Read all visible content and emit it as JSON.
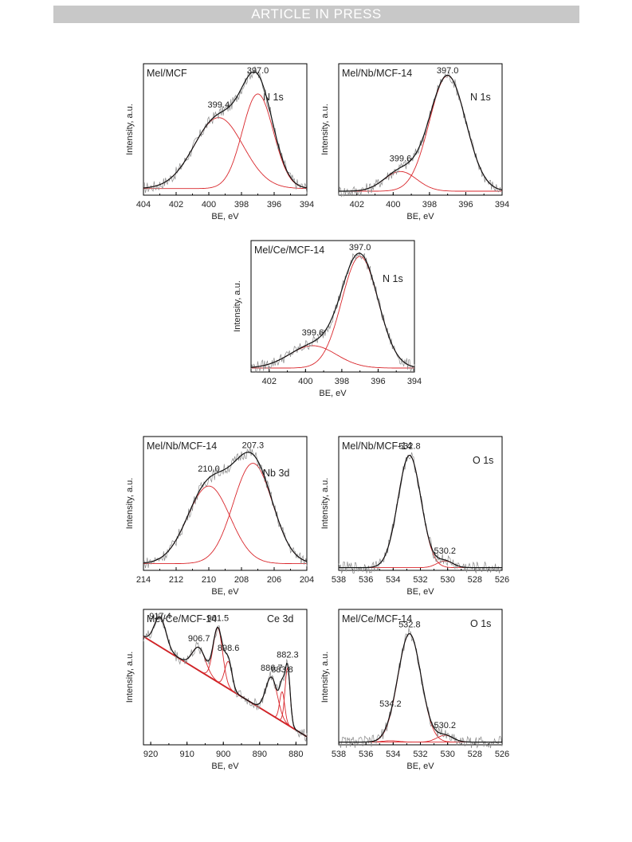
{
  "header": {
    "banner": "ARTICLE IN PRESS"
  },
  "chart_data": [
    {
      "type": "line",
      "title": "Mel/MCF",
      "region": "N 1s",
      "xlabel": "BE, eV",
      "ylabel": "Intensity, a.u.",
      "xlim": [
        404,
        394
      ],
      "x_ticks": [
        404,
        402,
        400,
        398,
        396,
        394
      ],
      "baseline": [
        0.05,
        0.05
      ],
      "peaks": [
        {
          "center": 399.4,
          "height": 0.54,
          "width": 1.5,
          "label": "399.4"
        },
        {
          "center": 397.0,
          "height": 0.72,
          "width": 0.95,
          "label": "397.0"
        }
      ]
    },
    {
      "type": "line",
      "title": "Mel/Nb/MCF-14",
      "region": "N 1s",
      "xlabel": "BE, eV",
      "ylabel": "Intensity, a.u.",
      "xlim": [
        403,
        394
      ],
      "x_ticks": [
        402,
        400,
        398,
        396,
        394
      ],
      "baseline": [
        0.03,
        0.03
      ],
      "peaks": [
        {
          "center": 399.6,
          "height": 0.15,
          "width": 0.9,
          "label": "399.6"
        },
        {
          "center": 397.0,
          "height": 0.88,
          "width": 1.0,
          "label": "397.0"
        }
      ]
    },
    {
      "type": "line",
      "title": "Mel/Ce/MCF-14",
      "region": "N 1s",
      "xlabel": "BE, eV",
      "ylabel": "Intensity, a.u.",
      "xlim": [
        403,
        394
      ],
      "x_ticks": [
        402,
        400,
        398,
        396,
        394
      ],
      "baseline": [
        0.03,
        0.03
      ],
      "peaks": [
        {
          "center": 399.6,
          "height": 0.17,
          "width": 1.3,
          "label": "399.6"
        },
        {
          "center": 397.0,
          "height": 0.85,
          "width": 1.0,
          "label": "397.0"
        }
      ]
    },
    {
      "type": "line",
      "title": "Mel/Nb/MCF-14",
      "region": "Nb 3d",
      "xlabel": "BE, eV",
      "ylabel": "Intensity, a.u.",
      "xlim": [
        214,
        204
      ],
      "x_ticks": [
        214,
        212,
        210,
        208,
        206,
        204
      ],
      "baseline": [
        0.05,
        0.05
      ],
      "peaks": [
        {
          "center": 210.0,
          "height": 0.58,
          "width": 1.3,
          "label": "210.0"
        },
        {
          "center": 207.3,
          "height": 0.75,
          "width": 1.2,
          "label": "207.3"
        }
      ]
    },
    {
      "type": "line",
      "title": "Mel/Nb/MCF-14",
      "region": "O 1s",
      "xlabel": "BE, eV",
      "ylabel": "Intensity, a.u.",
      "xlim": [
        538,
        526
      ],
      "x_ticks": [
        538,
        536,
        534,
        532,
        530,
        528,
        526
      ],
      "baseline": [
        0.02,
        0.02
      ],
      "peaks": [
        {
          "center": 532.8,
          "height": 0.84,
          "width": 0.85,
          "label": "532.8"
        },
        {
          "center": 530.2,
          "height": 0.05,
          "width": 0.6,
          "label": "530.2"
        }
      ]
    },
    {
      "type": "line",
      "title": "Mel/Ce/MCF-14",
      "region": "Ce 3d",
      "xlabel": "BE, eV",
      "ylabel": "Intensity, a.u.",
      "xlim": [
        922,
        877
      ],
      "x_ticks": [
        920,
        910,
        900,
        890,
        880
      ],
      "baseline": [
        0.8,
        0.06
      ],
      "peaks": [
        {
          "center": 917.4,
          "height": 0.22,
          "width": 1.6,
          "label": "917.4"
        },
        {
          "center": 906.7,
          "height": 0.17,
          "width": 1.8,
          "label": "906.7"
        },
        {
          "center": 901.5,
          "height": 0.4,
          "width": 1.3,
          "label": "901.5"
        },
        {
          "center": 898.6,
          "height": 0.2,
          "width": 1.0,
          "label": "898.6"
        },
        {
          "center": 886.7,
          "height": 0.28,
          "width": 1.6,
          "label": "886.7"
        },
        {
          "center": 883.8,
          "height": 0.22,
          "width": 0.7,
          "label": "883.8"
        },
        {
          "center": 882.3,
          "height": 0.42,
          "width": 0.7,
          "label": "882.3"
        }
      ]
    },
    {
      "type": "line",
      "title": "Mel/Ce/MCF-14",
      "region": "O 1s",
      "xlabel": "BE, eV",
      "ylabel": "Intensity, a.u.",
      "xlim": [
        538,
        526
      ],
      "x_ticks": [
        538,
        536,
        534,
        532,
        530,
        528,
        526
      ],
      "baseline": [
        0.02,
        0.02
      ],
      "peaks": [
        {
          "center": 532.8,
          "height": 0.8,
          "width": 0.85,
          "label": "532.8"
        },
        {
          "center": 534.2,
          "height": 0.01,
          "width": 0.6,
          "label": "534.2"
        },
        {
          "center": 530.2,
          "height": 0.05,
          "width": 0.6,
          "label": "530.2"
        }
      ]
    }
  ]
}
